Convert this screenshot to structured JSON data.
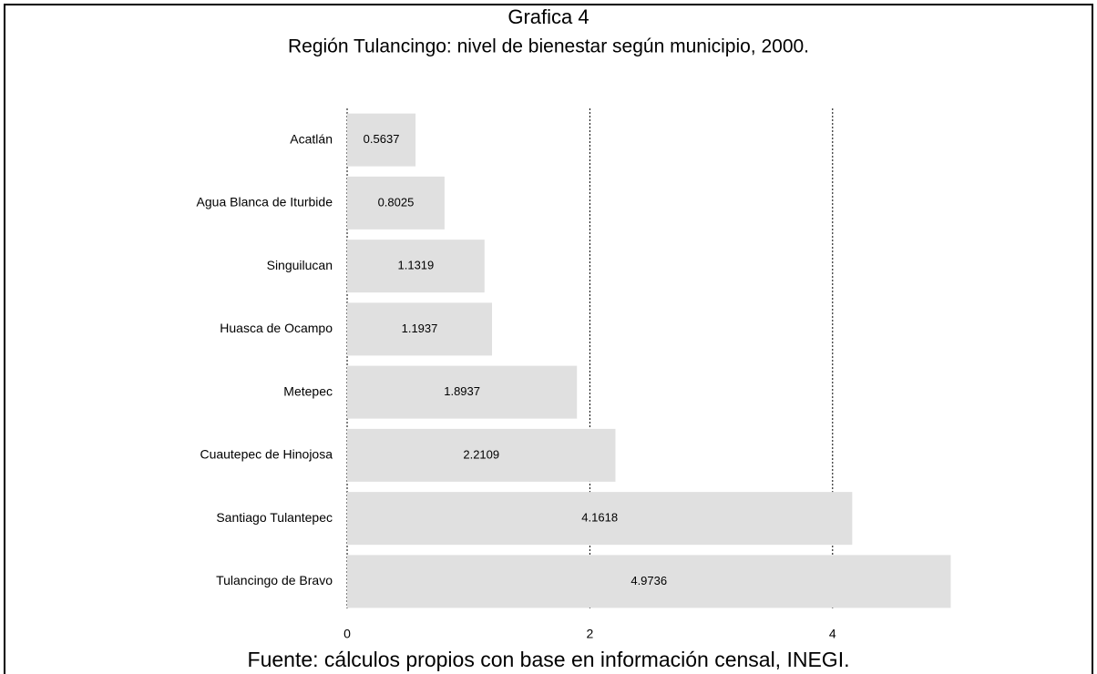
{
  "chart_data": {
    "type": "bar",
    "orientation": "horizontal",
    "title": "Grafica 4",
    "subtitle": "Región Tulancingo: nivel de bienestar según municipio, 2000.",
    "source": "Fuente: cálculos propios con base en información censal, INEGI.",
    "categories": [
      "Acatlán",
      "Agua Blanca de Iturbide",
      "Singuilucan",
      "Huasca de Ocampo",
      "Metepec",
      "Cuautepec de Hinojosa",
      "Santiago Tulantepec",
      "Tulancingo de Bravo"
    ],
    "values": [
      0.5637,
      0.8025,
      1.1319,
      1.1937,
      1.8937,
      2.2109,
      4.1618,
      4.9736
    ],
    "color": "#e0e0e0",
    "xlim": [
      0,
      5
    ],
    "xticks": [
      0,
      2,
      4
    ],
    "grid": true
  }
}
